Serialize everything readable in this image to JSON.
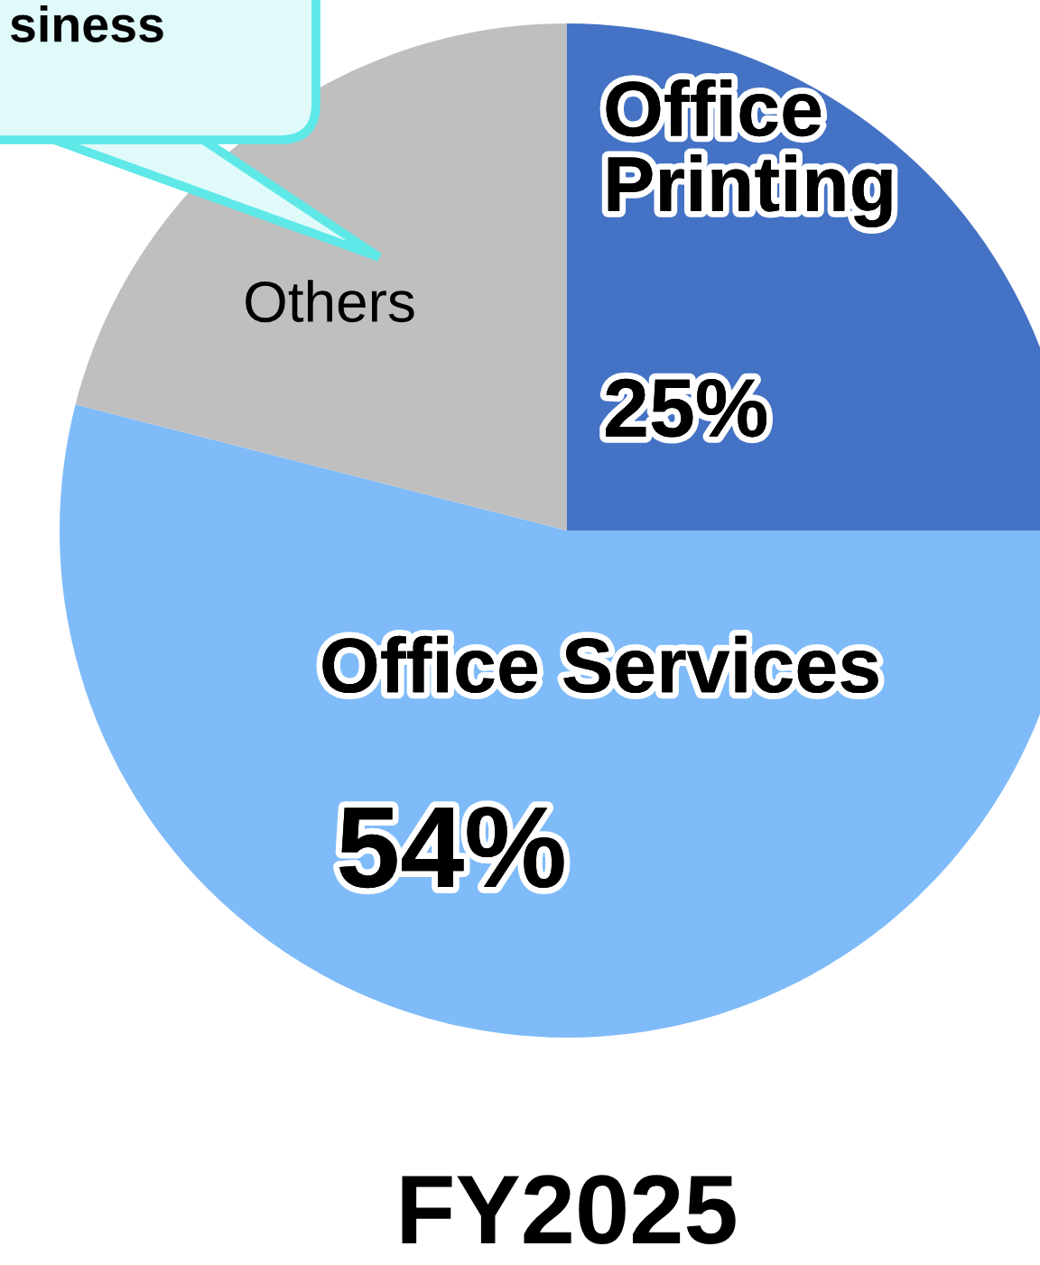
{
  "chart_data": {
    "type": "pie",
    "title": "FY2025",
    "categories": [
      "Office\nPrinting",
      "Office Services",
      "Others"
    ],
    "values": [
      25,
      54,
      21
    ],
    "colors": [
      "#4472c4",
      "#7fbbf8",
      "#bfbfbf"
    ],
    "value_labels": [
      "25%",
      "54%",
      null
    ],
    "annotations": [
      "siness"
    ]
  }
}
